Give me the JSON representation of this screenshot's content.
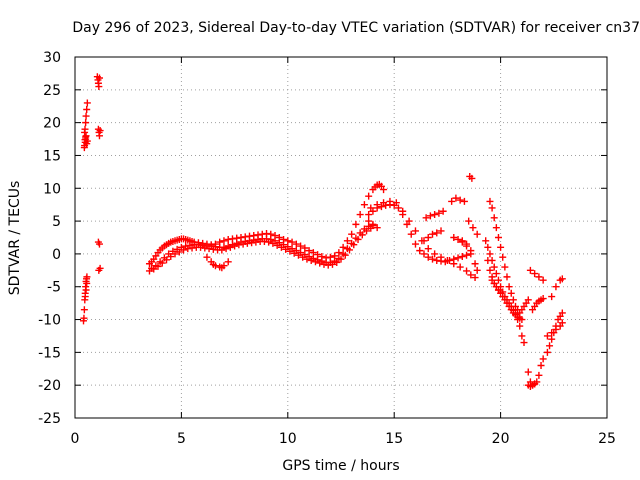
{
  "chart_data": {
    "type": "scatter",
    "title": "Day 296 of 2023, Sidereal Day-to-day VTEC variation (SDTVAR) for receiver cn37",
    "xlabel": "GPS time / hours",
    "ylabel": "SDTVAR / TECUs",
    "xlim": [
      0,
      25
    ],
    "ylim": [
      -25,
      30
    ],
    "xticks": [
      0,
      5,
      10,
      15,
      20,
      25
    ],
    "yticks": [
      -25,
      -20,
      -15,
      -10,
      -5,
      0,
      5,
      10,
      15,
      20,
      25,
      30
    ],
    "grid": true,
    "marker": "plus",
    "colors": {
      "series": "#ff0000",
      "axes": "#000000",
      "grid": "#a0a0a0"
    },
    "series": [
      {
        "name": "SDTVAR",
        "x": [
          0.4,
          0.42,
          0.44,
          0.46,
          0.48,
          0.5,
          0.52,
          0.54,
          0.56,
          0.45,
          0.48,
          0.5,
          0.52,
          0.55,
          0.58,
          0.45,
          0.47,
          0.5,
          0.52,
          0.55,
          0.58,
          0.44,
          0.47,
          0.5,
          0.48,
          0.52,
          0.55,
          1.05,
          1.08,
          1.1,
          1.12,
          1.15,
          1.1,
          1.13,
          1.15,
          1.18,
          1.1,
          1.15,
          1.12,
          1.18,
          3.5,
          3.6,
          3.7,
          3.8,
          3.9,
          4.0,
          4.1,
          4.2,
          4.3,
          4.4,
          4.5,
          4.6,
          4.7,
          4.8,
          4.9,
          5.0,
          5.1,
          5.2,
          5.3,
          5.4,
          5.5,
          5.6,
          5.8,
          6.0,
          6.2,
          6.4,
          6.6,
          6.8,
          7.0,
          7.2,
          7.4,
          7.6,
          7.8,
          8.0,
          8.2,
          8.4,
          8.6,
          8.8,
          9.0,
          9.2,
          9.4,
          9.6,
          9.8,
          10.0,
          10.2,
          10.4,
          10.6,
          10.8,
          11.0,
          11.2,
          11.4,
          11.6,
          11.8,
          12.0,
          12.2,
          12.4,
          12.6,
          12.8,
          13.0,
          13.2,
          13.4,
          13.6,
          13.8,
          14.0,
          14.1,
          14.2,
          14.3,
          14.4,
          14.5,
          3.6,
          3.8,
          4.0,
          4.2,
          4.4,
          4.6,
          4.8,
          5.0,
          5.2,
          5.4,
          5.6,
          5.8,
          6.0,
          6.2,
          6.4,
          6.6,
          6.8,
          7.0,
          7.2,
          7.4,
          7.6,
          7.8,
          8.0,
          8.2,
          8.4,
          8.6,
          8.8,
          9.0,
          9.2,
          9.4,
          9.6,
          9.8,
          10.0,
          10.2,
          10.4,
          10.6,
          10.8,
          11.0,
          11.2,
          11.4,
          11.6,
          11.8,
          12.0,
          12.2,
          12.4,
          12.6,
          12.8,
          13.0,
          13.2,
          13.4,
          13.6,
          13.8,
          14.0,
          3.5,
          3.7,
          3.9,
          4.1,
          4.3,
          4.5,
          4.7,
          4.9,
          5.1,
          5.3,
          5.5,
          5.7,
          5.9,
          6.1,
          6.3,
          6.5,
          6.7,
          6.9,
          7.1,
          7.3,
          7.5,
          7.7,
          7.9,
          8.1,
          8.3,
          8.5,
          8.7,
          8.9,
          9.1,
          9.3,
          9.5,
          9.7,
          9.9,
          10.1,
          10.3,
          10.5,
          10.7,
          10.9,
          11.1,
          11.3,
          11.5,
          11.7,
          11.9,
          12.1,
          12.3,
          12.5,
          12.7,
          12.9,
          13.1,
          13.3,
          13.5,
          13.7,
          13.9,
          6.2,
          6.4,
          6.6,
          6.8,
          7.0,
          7.2,
          6.5,
          6.9,
          13.8,
          14.0,
          14.2,
          14.4,
          14.6,
          14.8,
          15.0,
          15.2,
          15.4,
          15.6,
          15.8,
          16.0,
          16.2,
          16.4,
          16.6,
          16.8,
          17.0,
          17.2,
          17.4,
          17.6,
          17.8,
          18.0,
          18.2,
          18.4,
          13.9,
          14.2,
          14.5,
          14.8,
          15.1,
          15.4,
          15.7,
          16.0,
          16.3,
          16.6,
          16.9,
          17.2,
          17.5,
          17.8,
          18.1,
          18.4,
          18.6,
          18.8,
          13.8,
          14.0,
          14.2,
          16.5,
          16.7,
          16.9,
          17.1,
          17.3,
          16.4,
          16.6,
          16.8,
          17.0,
          17.2,
          17.7,
          17.9,
          18.1,
          18.3,
          17.8,
          18.0,
          18.2,
          18.4,
          18.6,
          18.2,
          18.4,
          18.6,
          18.8,
          18.9,
          18.5,
          18.7,
          18.9,
          18.55,
          18.65,
          19.3,
          19.4,
          19.5,
          19.6,
          19.7,
          19.8,
          19.9,
          20.0,
          20.1,
          20.2,
          20.3,
          20.4,
          20.5,
          20.6,
          20.7,
          20.8,
          20.9,
          21.0,
          21.1,
          19.5,
          19.6,
          19.7,
          19.8,
          19.9,
          20.0,
          20.1,
          20.2,
          20.3,
          20.4,
          20.5,
          20.6,
          20.7,
          20.8,
          19.6,
          19.7,
          19.8,
          19.9,
          20.0,
          20.1,
          20.2,
          20.3,
          20.4,
          20.5,
          20.6,
          20.7,
          20.8,
          20.9,
          21.0,
          19.4,
          19.5,
          19.6,
          19.7,
          19.8,
          19.9,
          20.9,
          21.0,
          21.1,
          21.2,
          21.3,
          21.3,
          21.4,
          21.5,
          21.6,
          21.7,
          21.8,
          21.9,
          22.0,
          21.4,
          21.6,
          21.8,
          22.0,
          21.5,
          21.6,
          21.7,
          21.8,
          21.9,
          22.0,
          22.2,
          22.3,
          22.4,
          22.5,
          22.6,
          22.7,
          22.8,
          22.9,
          22.4,
          22.6,
          22.8,
          22.9,
          22.2,
          22.4,
          22.6,
          22.8,
          22.9,
          21.3,
          21.4,
          21.5,
          21.6
        ],
        "y": [
          -10.2,
          -9.8,
          -8.5,
          -7.0,
          -6.0,
          -5.0,
          -4.2,
          -3.8,
          -3.5,
          16.5,
          17.0,
          17.5,
          18.0,
          16.8,
          17.2,
          18.5,
          19.0,
          20.0,
          21.0,
          22.0,
          23.0,
          16.2,
          17.4,
          17.8,
          -6.5,
          -5.5,
          -4.5,
          27.0,
          26.5,
          26.0,
          25.5,
          26.8,
          19.0,
          18.5,
          18.0,
          18.8,
          1.8,
          1.5,
          -2.5,
          -2.2,
          -1.5,
          -1.2,
          -0.8,
          -0.3,
          0.2,
          0.6,
          0.9,
          1.2,
          1.4,
          1.6,
          1.8,
          1.9,
          2.0,
          2.1,
          2.2,
          2.3,
          2.3,
          2.2,
          2.1,
          2.0,
          1.9,
          1.8,
          1.7,
          1.6,
          1.5,
          1.4,
          1.5,
          1.8,
          2.0,
          2.2,
          2.3,
          2.4,
          2.5,
          2.6,
          2.7,
          2.8,
          2.9,
          3.0,
          3.1,
          3.0,
          2.8,
          2.5,
          2.2,
          2.0,
          1.8,
          1.5,
          1.2,
          0.9,
          0.5,
          0.2,
          -0.1,
          -0.4,
          -0.6,
          -0.5,
          -0.3,
          0.2,
          1.0,
          2.0,
          3.0,
          4.5,
          6.0,
          7.5,
          8.8,
          9.8,
          10.2,
          10.5,
          10.6,
          10.3,
          9.8,
          -2.2,
          -1.8,
          -1.2,
          -0.6,
          0.0,
          0.4,
          0.7,
          1.0,
          1.2,
          1.3,
          1.4,
          1.4,
          1.3,
          1.2,
          1.2,
          1.1,
          1.0,
          1.0,
          1.2,
          1.4,
          1.6,
          1.8,
          1.9,
          2.0,
          2.1,
          2.2,
          2.3,
          2.3,
          2.2,
          2.0,
          1.7,
          1.4,
          1.1,
          0.8,
          0.5,
          0.2,
          -0.1,
          -0.4,
          -0.7,
          -0.9,
          -1.1,
          -1.3,
          -1.3,
          -1.1,
          -0.7,
          0.0,
          0.8,
          1.6,
          2.4,
          3.2,
          3.8,
          4.2,
          4.3,
          -2.6,
          -2.3,
          -1.9,
          -1.4,
          -0.9,
          -0.4,
          0.0,
          0.3,
          0.6,
          0.8,
          0.9,
          1.0,
          1.0,
          0.9,
          0.8,
          0.7,
          0.6,
          0.6,
          0.8,
          1.0,
          1.2,
          1.4,
          1.5,
          1.6,
          1.7,
          1.8,
          1.9,
          1.9,
          1.8,
          1.6,
          1.3,
          1.0,
          0.7,
          0.4,
          0.1,
          -0.2,
          -0.5,
          -0.8,
          -1.0,
          -1.2,
          -1.4,
          -1.6,
          -1.7,
          -1.6,
          -1.3,
          -0.8,
          -0.2,
          0.6,
          1.4,
          2.2,
          2.9,
          3.5,
          3.9,
          -0.5,
          -1.2,
          -1.8,
          -2.0,
          -1.8,
          -1.2,
          -1.6,
          -2.1,
          6.0,
          6.5,
          7.0,
          7.2,
          7.4,
          7.5,
          7.4,
          7.0,
          6.0,
          4.5,
          3.0,
          1.5,
          0.5,
          0.0,
          -0.5,
          -0.8,
          -1.0,
          -1.1,
          -1.2,
          -1.0,
          -0.8,
          -0.6,
          -0.4,
          -0.2,
          7.0,
          7.5,
          7.8,
          8.0,
          7.8,
          6.5,
          5.0,
          3.5,
          2.0,
          0.8,
          0.0,
          -0.5,
          -1.0,
          -1.5,
          -2.0,
          -2.6,
          -3.2,
          -3.6,
          5.0,
          4.5,
          4.0,
          5.5,
          5.8,
          6.0,
          6.2,
          6.5,
          2.0,
          2.5,
          3.0,
          3.2,
          3.5,
          8.0,
          8.5,
          8.2,
          8.0,
          2.5,
          2.2,
          1.8,
          1.2,
          0.5,
          2.0,
          1.5,
          0.0,
          -1.5,
          -2.5,
          5.0,
          4.0,
          3.0,
          11.8,
          11.5,
          2.0,
          1.0,
          0.0,
          -1.0,
          -2.0,
          -3.0,
          -4.0,
          -5.0,
          -5.8,
          -6.5,
          -7.0,
          -7.5,
          -8.0,
          -8.6,
          -9.2,
          -10.0,
          -11.0,
          -12.5,
          -13.5,
          8.0,
          7.0,
          5.5,
          4.0,
          2.5,
          1.0,
          -0.5,
          -2.0,
          -3.5,
          -5.0,
          -6.0,
          -7.0,
          -8.0,
          -8.5,
          -4.0,
          -4.5,
          -5.0,
          -5.5,
          -6.0,
          -6.5,
          -7.0,
          -7.5,
          -8.0,
          -8.5,
          -9.0,
          -9.3,
          -9.6,
          -9.8,
          -10.0,
          -1.0,
          -2.5,
          -3.5,
          -4.5,
          -5.0,
          -5.5,
          -9.0,
          -8.5,
          -8.0,
          -7.5,
          -7.0,
          -20.0,
          -20.2,
          -20.0,
          -19.8,
          -19.5,
          -18.5,
          -17.0,
          -16.0,
          -2.5,
          -3.0,
          -3.5,
          -4.0,
          -8.5,
          -8.0,
          -7.5,
          -7.2,
          -7.0,
          -6.8,
          -15.0,
          -14.0,
          -13.0,
          -12.0,
          -11.0,
          -10.0,
          -9.5,
          -9.0,
          -6.5,
          -5.0,
          -4.0,
          -3.8,
          -12.5,
          -12.0,
          -11.5,
          -11.0,
          -10.5,
          -18.0,
          -19.5,
          -20.0,
          -19.8
        ]
      }
    ]
  }
}
